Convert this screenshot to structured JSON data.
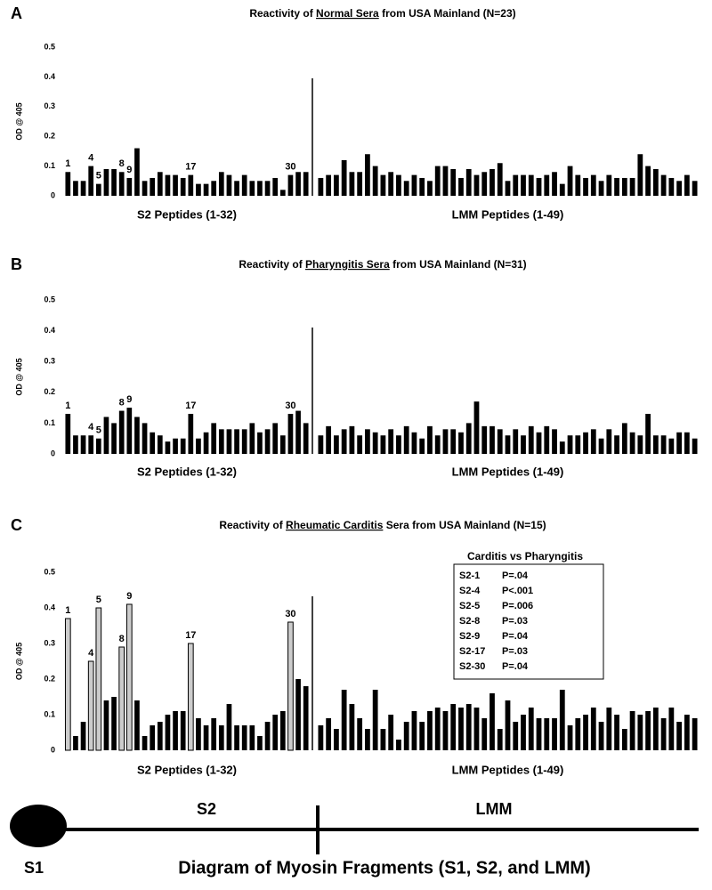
{
  "chart_data": [
    {
      "type": "bar",
      "panel": "A",
      "title": {
        "before": "Reactivity of ",
        "underlined": "Normal Sera",
        "after": " from USA Mainland (N=23)"
      },
      "ylabel": "OD @ 405",
      "ylim": [
        0,
        0.5
      ],
      "yticks": [
        0,
        0.1,
        0.2,
        0.3,
        0.4,
        0.5
      ],
      "color": "#000000",
      "groups": [
        {
          "name": "S2 Peptides (1-32)",
          "categories": [
            "1",
            null,
            null,
            "4",
            "5",
            null,
            null,
            "8",
            "9",
            null,
            null,
            null,
            null,
            null,
            null,
            null,
            "17",
            null,
            null,
            null,
            null,
            null,
            null,
            null,
            null,
            null,
            null,
            null,
            null,
            "30",
            null,
            null
          ],
          "values": [
            0.08,
            0.05,
            0.05,
            0.1,
            0.04,
            0.09,
            0.09,
            0.08,
            0.06,
            0.16,
            0.05,
            0.06,
            0.08,
            0.07,
            0.07,
            0.06,
            0.07,
            0.04,
            0.04,
            0.05,
            0.08,
            0.07,
            0.05,
            0.07,
            0.05,
            0.05,
            0.05,
            0.06,
            0.02,
            0.07,
            0.08,
            0.08
          ]
        },
        {
          "name": "LMM Peptides (1-49)",
          "values": [
            0.06,
            0.07,
            0.07,
            0.12,
            0.08,
            0.08,
            0.14,
            0.1,
            0.07,
            0.08,
            0.07,
            0.05,
            0.07,
            0.06,
            0.05,
            0.1,
            0.1,
            0.09,
            0.06,
            0.09,
            0.07,
            0.08,
            0.09,
            0.11,
            0.05,
            0.07,
            0.07,
            0.07,
            0.06,
            0.07,
            0.08,
            0.04,
            0.1,
            0.07,
            0.06,
            0.07,
            0.05,
            0.07,
            0.06,
            0.06,
            0.06,
            0.14,
            0.1,
            0.09,
            0.07,
            0.06,
            0.05,
            0.07,
            0.05
          ]
        }
      ]
    },
    {
      "type": "bar",
      "panel": "B",
      "title": {
        "before": "Reactivity of ",
        "underlined": "Pharyngitis Sera",
        "after": " from USA Mainland (N=31)"
      },
      "ylabel": "OD @ 405",
      "ylim": [
        0,
        0.5
      ],
      "yticks": [
        0,
        0.1,
        0.2,
        0.3,
        0.4,
        0.5
      ],
      "color": "#000000",
      "groups": [
        {
          "name": "S2 Peptides (1-32)",
          "categories": [
            "1",
            null,
            null,
            "4",
            "5",
            null,
            null,
            "8",
            "9",
            null,
            null,
            null,
            null,
            null,
            null,
            null,
            "17",
            null,
            null,
            null,
            null,
            null,
            null,
            null,
            null,
            null,
            null,
            null,
            null,
            "30",
            null,
            null
          ],
          "values": [
            0.13,
            0.06,
            0.06,
            0.06,
            0.05,
            0.12,
            0.1,
            0.14,
            0.15,
            0.12,
            0.1,
            0.07,
            0.06,
            0.04,
            0.05,
            0.05,
            0.13,
            0.05,
            0.07,
            0.1,
            0.08,
            0.08,
            0.08,
            0.08,
            0.1,
            0.07,
            0.08,
            0.1,
            0.06,
            0.13,
            0.14,
            0.1
          ]
        },
        {
          "name": "LMM Peptides (1-49)",
          "values": [
            0.06,
            0.09,
            0.06,
            0.08,
            0.09,
            0.06,
            0.08,
            0.07,
            0.06,
            0.08,
            0.06,
            0.09,
            0.07,
            0.05,
            0.09,
            0.06,
            0.08,
            0.08,
            0.07,
            0.1,
            0.17,
            0.09,
            0.09,
            0.08,
            0.06,
            0.08,
            0.06,
            0.09,
            0.07,
            0.09,
            0.08,
            0.04,
            0.06,
            0.06,
            0.07,
            0.08,
            0.05,
            0.08,
            0.06,
            0.1,
            0.07,
            0.06,
            0.13,
            0.06,
            0.06,
            0.05,
            0.07,
            0.07,
            0.05
          ]
        }
      ]
    },
    {
      "type": "bar",
      "panel": "C",
      "title": {
        "before": "Reactivity of ",
        "underlined": "Rheumatic Carditis",
        "after": " Sera from USA Mainland (N=15)"
      },
      "ylabel": "OD @ 405",
      "ylim": [
        0,
        0.5
      ],
      "yticks": [
        0,
        0.1,
        0.2,
        0.3,
        0.4,
        0.5
      ],
      "color": "#000000",
      "highlight": {
        "color": "#cccccc",
        "indices": [
          0,
          3,
          4,
          7,
          8,
          16,
          29
        ]
      },
      "groups": [
        {
          "name": "S2 Peptides (1-32)",
          "categories": [
            "1",
            null,
            null,
            "4",
            "5",
            null,
            null,
            "8",
            "9",
            null,
            null,
            null,
            null,
            null,
            null,
            null,
            "17",
            null,
            null,
            null,
            null,
            null,
            null,
            null,
            null,
            null,
            null,
            null,
            null,
            "30",
            null,
            null
          ],
          "values": [
            0.37,
            0.04,
            0.08,
            0.25,
            0.4,
            0.14,
            0.15,
            0.29,
            0.41,
            0.14,
            0.04,
            0.07,
            0.08,
            0.1,
            0.11,
            0.11,
            0.3,
            0.09,
            0.07,
            0.09,
            0.07,
            0.13,
            0.07,
            0.07,
            0.07,
            0.04,
            0.08,
            0.1,
            0.11,
            0.36,
            0.2,
            0.18
          ]
        },
        {
          "name": "LMM Peptides (1-49)",
          "values": [
            0.07,
            0.09,
            0.06,
            0.17,
            0.13,
            0.09,
            0.06,
            0.17,
            0.06,
            0.1,
            0.03,
            0.08,
            0.11,
            0.08,
            0.11,
            0.12,
            0.11,
            0.13,
            0.12,
            0.13,
            0.12,
            0.09,
            0.16,
            0.06,
            0.14,
            0.08,
            0.1,
            0.12,
            0.09,
            0.09,
            0.09,
            0.17,
            0.07,
            0.09,
            0.1,
            0.12,
            0.08,
            0.12,
            0.1,
            0.06,
            0.11,
            0.1,
            0.11,
            0.12,
            0.09,
            0.12,
            0.08,
            0.1,
            0.09
          ]
        }
      ],
      "inset": {
        "title": "Carditis vs Pharyngitis",
        "rows": [
          [
            "S2-1",
            "P=.04"
          ],
          [
            "S2-4",
            "P<.001"
          ],
          [
            "S2-5",
            "P=.006"
          ],
          [
            "S2-8",
            "P=.03"
          ],
          [
            "S2-9",
            "P=.04"
          ],
          [
            "S2-17",
            "P=.03"
          ],
          [
            "S2-30",
            "P=.04"
          ]
        ]
      }
    }
  ],
  "diagram": {
    "s1": "S1",
    "s2": "S2",
    "lmm": "LMM",
    "caption": "Diagram of Myosin Fragments (S1, S2, and LMM)"
  }
}
